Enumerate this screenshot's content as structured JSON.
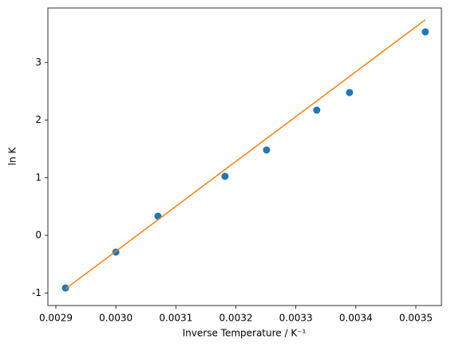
{
  "chart_data": {
    "type": "scatter",
    "x_label": "Inverse Temperature / K⁻¹",
    "y_label": "ln K",
    "xlim": [
      0.0028867,
      0.0035426
    ],
    "ylim": [
      -1.218,
      3.945
    ],
    "xticks": [
      0.0029,
      {
        "value": 0.003,
        "label": "0.0030"
      },
      0.0031,
      0.0032,
      0.0033,
      0.0034,
      0.0035
    ],
    "yticks": [
      -1,
      0,
      1,
      2,
      3
    ],
    "series": [
      {
        "type": "scatter",
        "color": "#1f77b4",
        "x": [
          0.002916,
          0.003,
          0.0030702,
          0.0031819,
          0.0032511,
          0.0033348,
          0.0033894,
          0.0035157
        ],
        "values": [
          -0.913,
          -0.29,
          0.332,
          1.024,
          1.481,
          2.173,
          2.478,
          3.53
        ]
      },
      {
        "type": "line",
        "color": "#ff7f0e",
        "x": [
          0.002916,
          0.0035157
        ],
        "values": [
          -0.93,
          3.74
        ]
      }
    ]
  }
}
